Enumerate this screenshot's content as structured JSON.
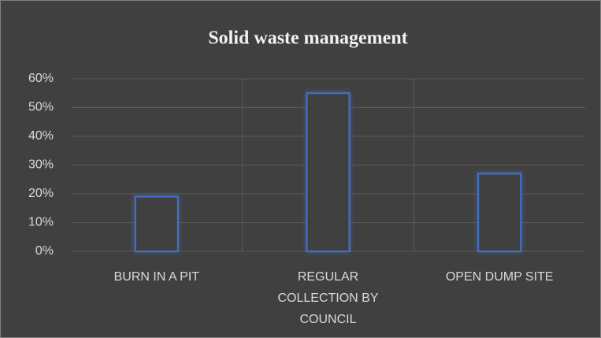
{
  "chart_data": {
    "type": "bar",
    "title": "Solid waste management",
    "categories": [
      "BURN IN A PIT",
      "REGULAR COLLECTION BY COUNCIL",
      "OPEN DUMP SITE"
    ],
    "values": [
      19,
      55,
      27
    ],
    "color": "#4472c4",
    "ylim": [
      0,
      60
    ],
    "yticks": [
      {
        "value": 0,
        "label": "0%"
      },
      {
        "value": 10,
        "label": "10%"
      },
      {
        "value": 20,
        "label": "20%"
      },
      {
        "value": 30,
        "label": "30%"
      },
      {
        "value": 40,
        "label": "40%"
      },
      {
        "value": 50,
        "label": "50%"
      },
      {
        "value": 60,
        "label": "60%"
      }
    ],
    "grid": true
  }
}
